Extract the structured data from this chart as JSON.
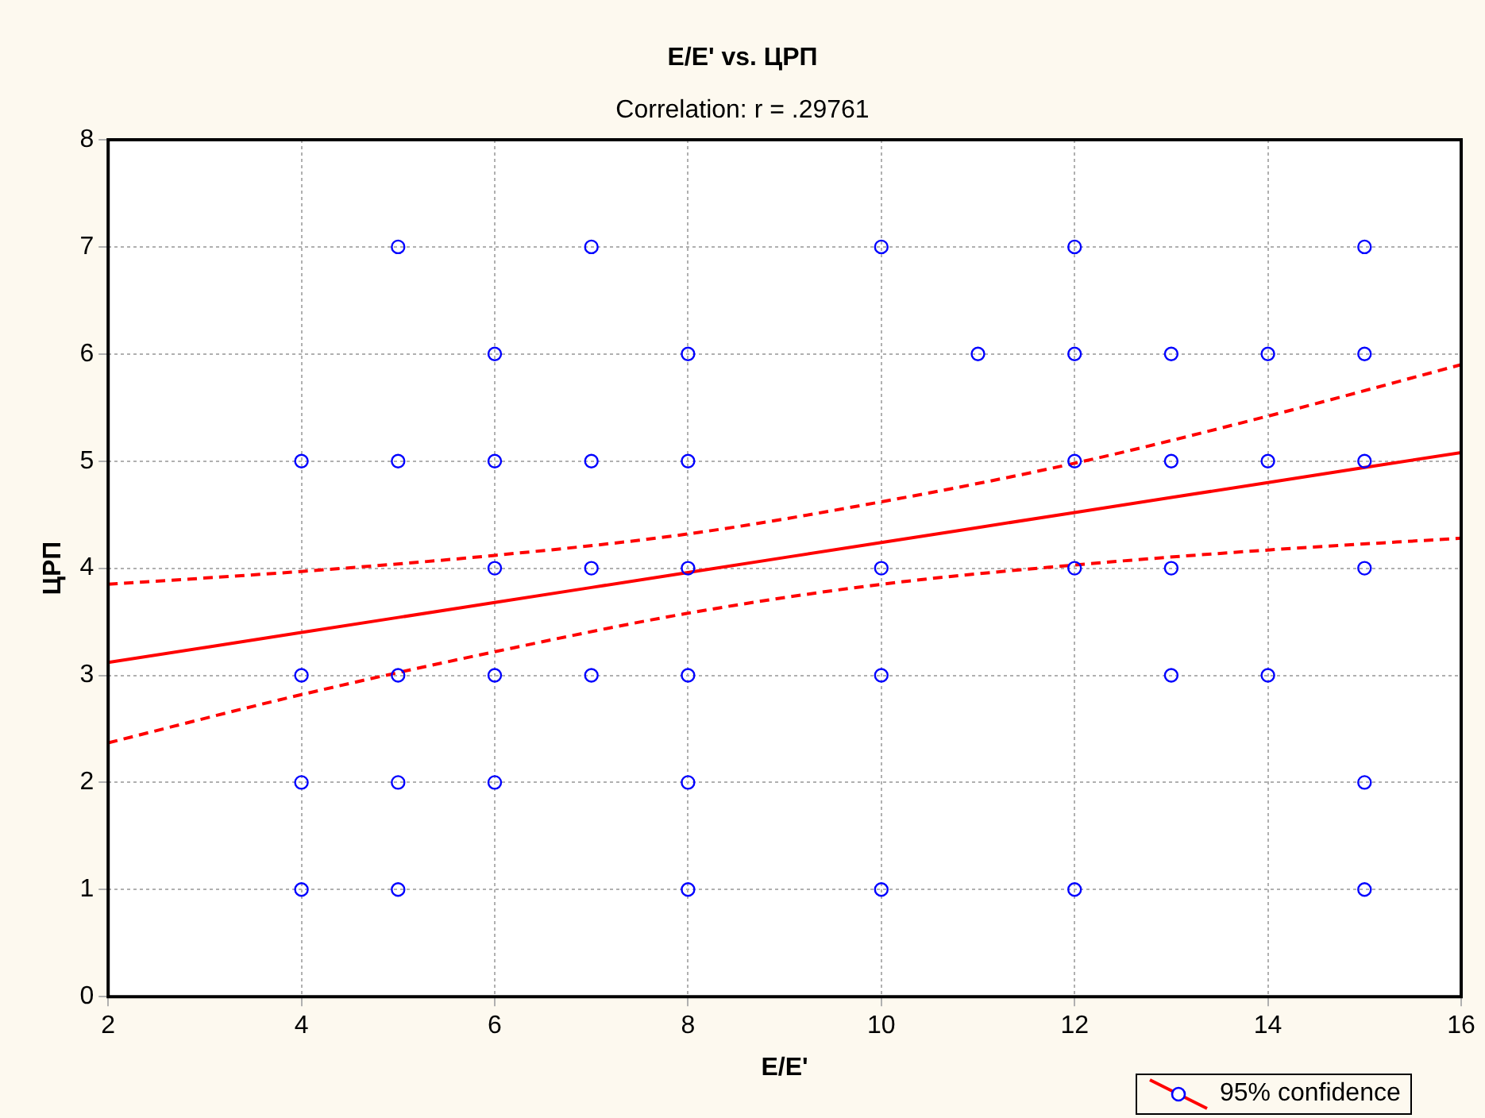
{
  "chart_data": {
    "type": "scatter",
    "title": "E/E' vs. ЦРП",
    "subtitle": "Correlation: r = .29761",
    "xlabel": "E/E'",
    "ylabel": "ЦРП",
    "xlim": [
      2,
      16
    ],
    "xticks": [
      2,
      4,
      6,
      8,
      10,
      12,
      14,
      16
    ],
    "ylim": [
      0,
      8
    ],
    "yticks": [
      0,
      1,
      2,
      3,
      4,
      5,
      6,
      7,
      8
    ],
    "grid": true,
    "legend": "bottom right",
    "series": [
      {
        "color": "#0000ff",
        "marker": "circle",
        "x": [
          5,
          7,
          10,
          12,
          15,
          6,
          8,
          11,
          12,
          13,
          14,
          15,
          4,
          5,
          6,
          7,
          8,
          12,
          13,
          14,
          15,
          6,
          7,
          8,
          10,
          12,
          13,
          15,
          4,
          5,
          6,
          7,
          8,
          10,
          13,
          14,
          4,
          5,
          6,
          8,
          15,
          4,
          5,
          8,
          10,
          12,
          15
        ],
        "values": [
          7,
          7,
          7,
          7,
          7,
          6,
          6,
          6,
          6,
          6,
          6,
          6,
          5,
          5,
          5,
          5,
          5,
          5,
          5,
          5,
          5,
          4,
          4,
          4,
          4,
          4,
          4,
          4,
          3,
          3,
          3,
          3,
          3,
          3,
          3,
          3,
          2,
          2,
          2,
          2,
          2,
          1,
          1,
          1,
          1,
          1,
          1
        ]
      },
      {
        "type": "line",
        "name": "95% confidence",
        "color": "#ff0000",
        "line_style": "solid",
        "marker": "none",
        "x": [
          2,
          4,
          6,
          8,
          10,
          12,
          14,
          16
        ],
        "values": [
          3.12,
          3.4,
          3.68,
          3.96,
          4.24,
          4.52,
          4.8,
          5.08
        ]
      },
      {
        "type": "line",
        "color": "#ff0000",
        "line_style": "dashed",
        "marker": "none",
        "x": [
          2,
          4,
          6,
          8,
          10,
          12,
          14,
          16
        ],
        "values": [
          2.37,
          2.82,
          3.22,
          3.58,
          3.85,
          4.03,
          4.17,
          4.28
        ]
      },
      {
        "type": "line",
        "color": "#ff0000",
        "line_style": "dashed",
        "marker": "none",
        "x": [
          2,
          4,
          6,
          8,
          10,
          12,
          14,
          16
        ],
        "values": [
          3.85,
          3.97,
          4.12,
          4.32,
          4.62,
          4.98,
          5.42,
          5.9
        ]
      }
    ]
  }
}
